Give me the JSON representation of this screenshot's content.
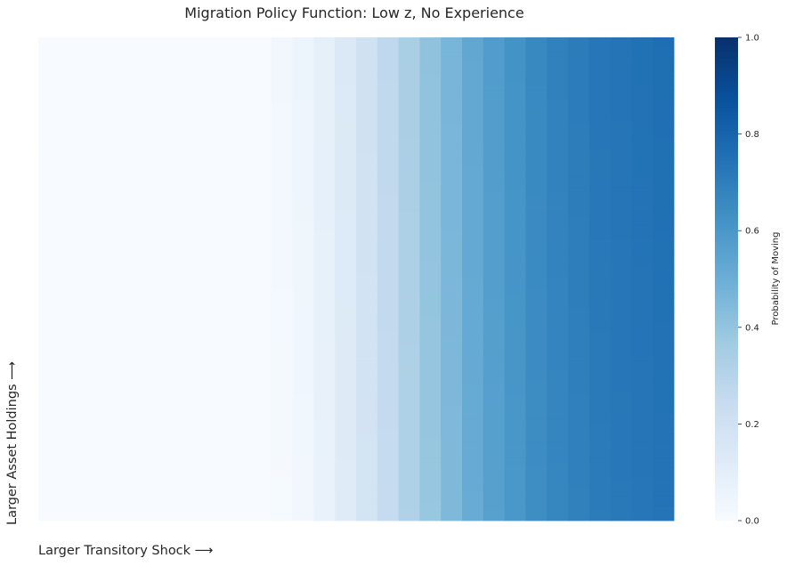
{
  "chart_data": {
    "type": "heatmap",
    "title": "Migration Policy Function: Low z, No Experience",
    "xlabel": "Larger Transitory Shock ⟶",
    "ylabel": "Larger Asset Holdings ⟶",
    "colorbar": {
      "label": "Probability of Moving",
      "range": [
        0,
        1
      ],
      "ticks": [
        "0.0",
        "0.2",
        "0.4",
        "0.6",
        "0.8",
        "1.0"
      ],
      "colormap": "Blues"
    },
    "n_rows": 100,
    "n_columns": 30,
    "column_values": [
      0.0,
      0.0,
      0.0,
      0.0,
      0.0,
      0.0,
      0.0,
      0.0,
      0.0,
      0.0,
      0.0,
      0.03,
      0.05,
      0.09,
      0.14,
      0.2,
      0.27,
      0.34,
      0.41,
      0.47,
      0.53,
      0.58,
      0.62,
      0.66,
      0.69,
      0.71,
      0.73,
      0.74,
      0.75,
      0.76
    ],
    "row_variation_note": "",
    "colors": {
      "low": "#f7fbff",
      "high": "#08306b"
    }
  }
}
